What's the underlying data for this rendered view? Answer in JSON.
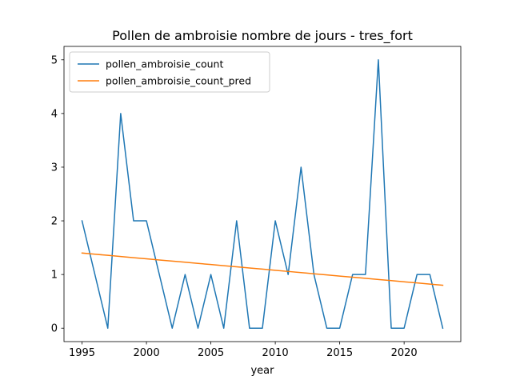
{
  "chart_data": {
    "type": "line",
    "title": "Pollen de ambroisie nombre de jours - tres_fort",
    "xlabel": "year",
    "ylabel": "",
    "x": [
      1995,
      1996,
      1997,
      1998,
      1999,
      2000,
      2001,
      2002,
      2003,
      2004,
      2005,
      2006,
      2007,
      2008,
      2009,
      2010,
      2011,
      2012,
      2013,
      2014,
      2015,
      2016,
      2017,
      2018,
      2019,
      2020,
      2021,
      2022,
      2023
    ],
    "series": [
      {
        "name": "pollen_ambroisie_count",
        "color": "#1f77b4",
        "values": [
          2,
          1,
          0,
          4,
          2,
          2,
          1,
          0,
          1,
          0,
          1,
          0,
          2,
          0,
          0,
          2,
          1,
          3,
          1,
          0,
          0,
          1,
          1,
          5,
          0,
          0,
          1,
          1,
          0
        ]
      },
      {
        "name": "pollen_ambroisie_count_pred",
        "color": "#ff7f0e",
        "values": [
          1.4,
          1.379,
          1.357,
          1.336,
          1.314,
          1.293,
          1.271,
          1.25,
          1.229,
          1.207,
          1.186,
          1.164,
          1.143,
          1.121,
          1.1,
          1.079,
          1.057,
          1.036,
          1.014,
          0.993,
          0.971,
          0.95,
          0.929,
          0.907,
          0.886,
          0.864,
          0.843,
          0.821,
          0.8
        ]
      }
    ],
    "xticks": [
      1995,
      2000,
      2005,
      2010,
      2015,
      2020
    ],
    "yticks": [
      0,
      1,
      2,
      3,
      4,
      5
    ],
    "xlim": [
      1993.6,
      2024.4
    ],
    "ylim": [
      -0.25,
      5.25
    ],
    "grid": false,
    "legend_position": "top-left"
  }
}
